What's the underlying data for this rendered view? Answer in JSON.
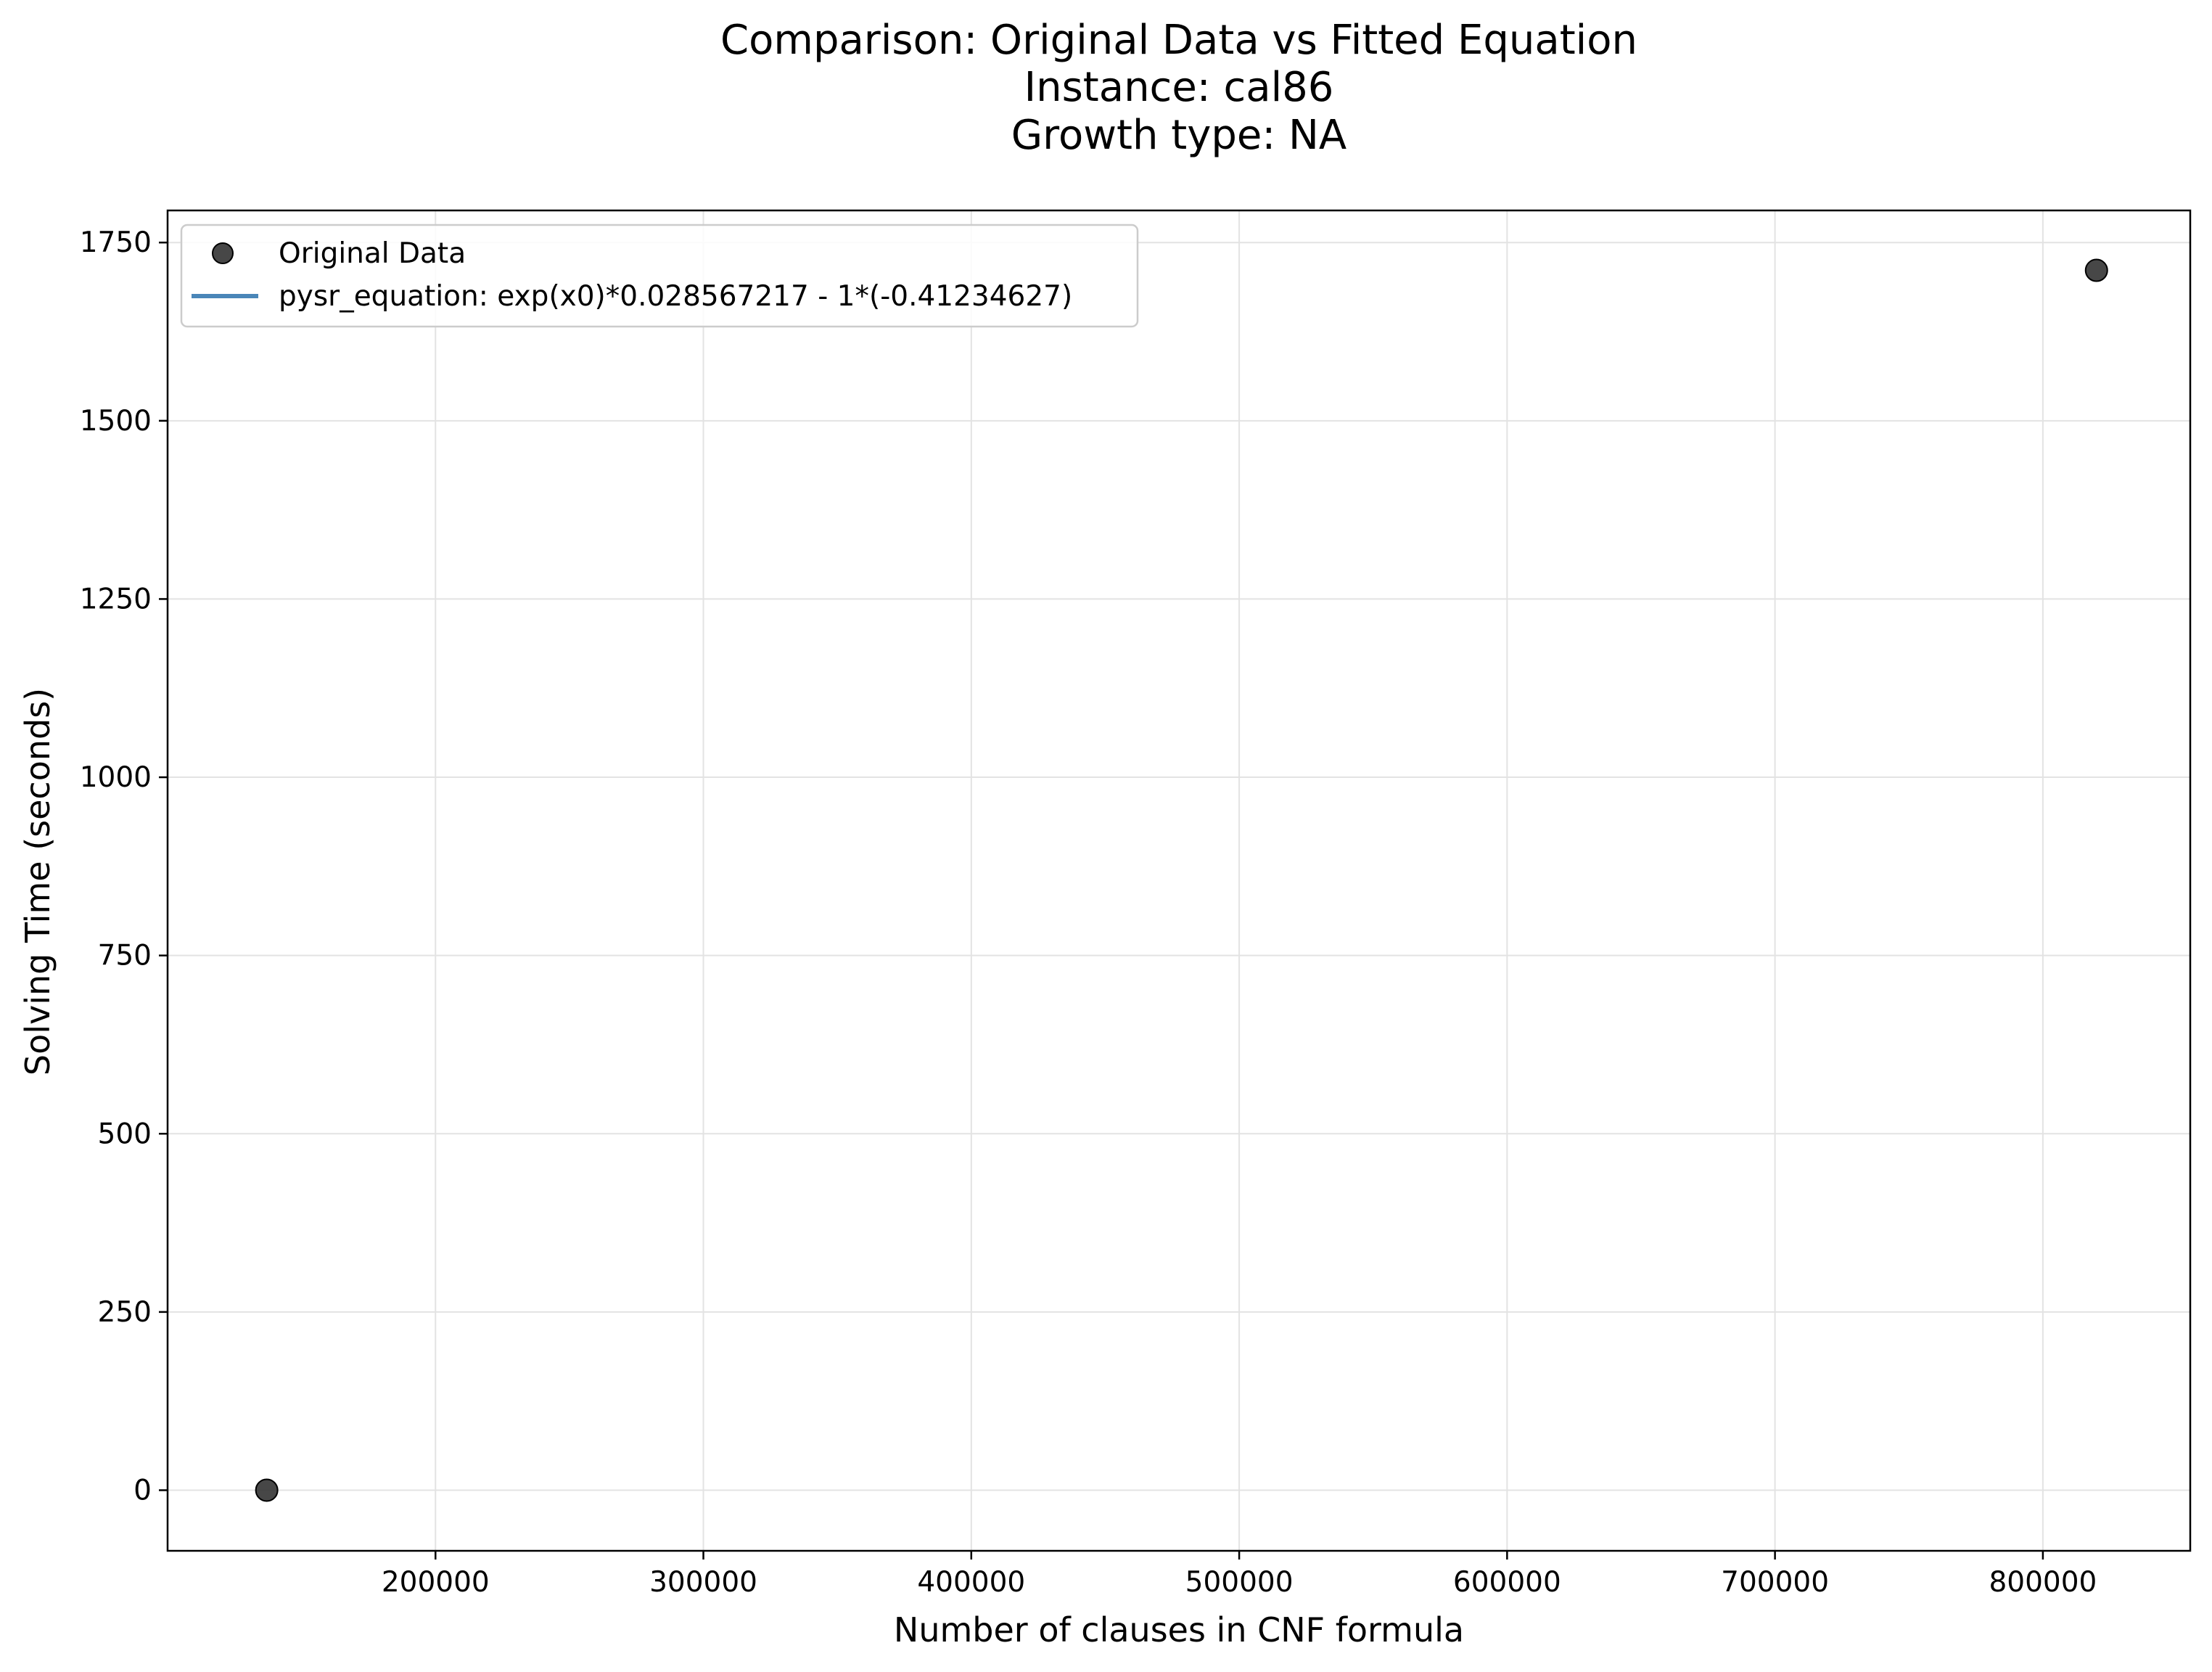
{
  "chart_data": {
    "type": "scatter",
    "title_lines": [
      "Comparison: Original Data vs Fitted Equation",
      "Instance: cal86",
      "Growth type: NA"
    ],
    "xlabel": "Number of clauses in CNF formula",
    "ylabel": "Solving Time (seconds)",
    "xlim": [
      100000,
      855000
    ],
    "ylim": [
      -85,
      1795
    ],
    "xticks": [
      200000,
      300000,
      400000,
      500000,
      600000,
      700000,
      800000
    ],
    "yticks": [
      0,
      250,
      500,
      750,
      1000,
      1250,
      1500,
      1750
    ],
    "grid": true,
    "legend_position": "top-left",
    "series": [
      {
        "name": "Original Data",
        "kind": "scatter",
        "color": "#333333",
        "points": [
          {
            "x": 137000,
            "y": 0
          },
          {
            "x": 820000,
            "y": 1711
          }
        ]
      },
      {
        "name": "pysr_equation: exp(x0)*0.028567217 - 1*(-0.41234627)",
        "kind": "line",
        "color": "#4a86b8",
        "points": []
      }
    ]
  }
}
